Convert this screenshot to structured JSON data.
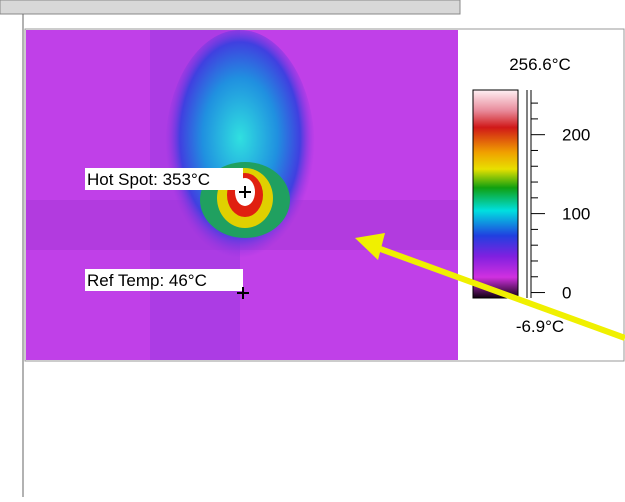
{
  "annotations": [
    {
      "label": "Hot Spot: 353°C"
    },
    {
      "label": "Ref Temp: 46°C"
    }
  ],
  "colorbar": {
    "max": {
      "value": 256.6,
      "label": "256.6°C"
    },
    "min": {
      "value": -6.9,
      "label": "-6.9°C"
    },
    "ticks": [
      0,
      100,
      200
    ]
  }
}
